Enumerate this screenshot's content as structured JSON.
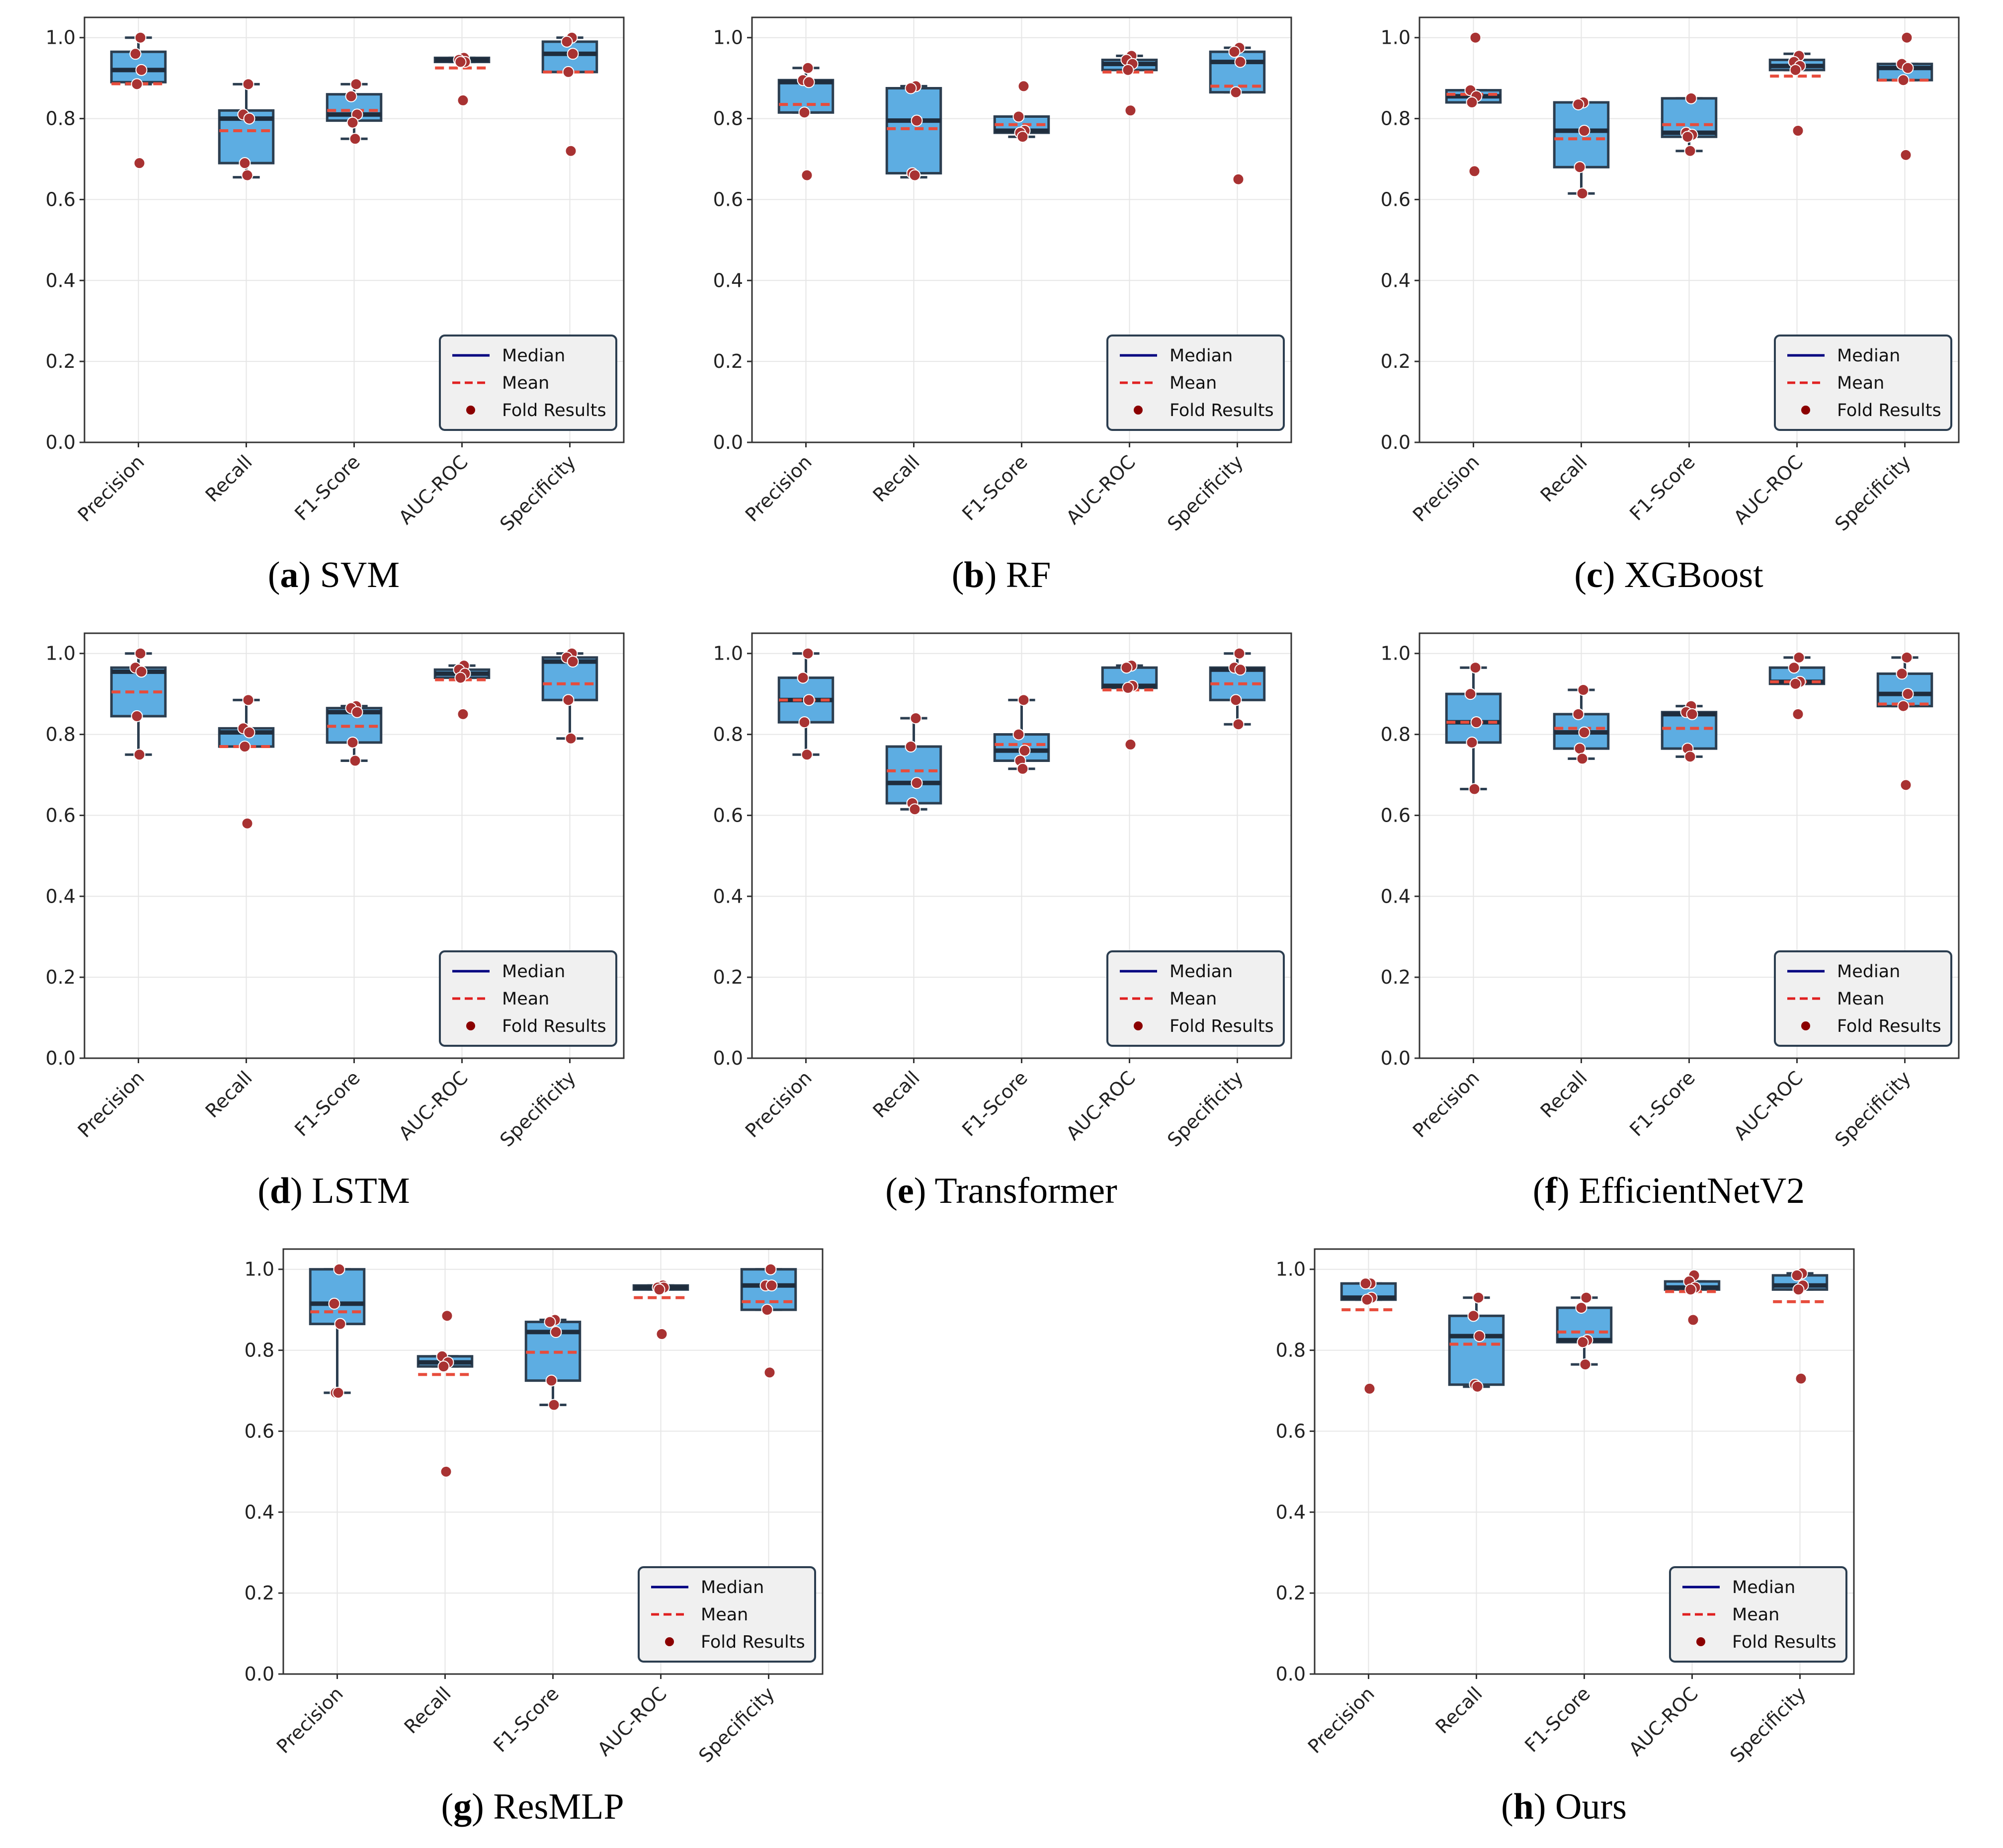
{
  "legend": {
    "median": "Median",
    "mean": "Mean",
    "fold": "Fold Results"
  },
  "colors": {
    "box_fill": "#5dade2",
    "box_edge": "#2c3e50",
    "median": "#1f2d3d",
    "mean": "#e74c3c",
    "points": "#a83232",
    "legend_median": "#000080",
    "legend_mean": "#e02020",
    "legend_points": "#8b0000"
  },
  "chart_data": [
    {
      "type": "box",
      "letter": "a",
      "model": "SVM",
      "categories": [
        "Precision",
        "Recall",
        "F1-Score",
        "AUC-ROC",
        "Specificity"
      ],
      "yticks": [
        "0.0",
        "0.2",
        "0.4",
        "0.6",
        "0.8",
        "1.0"
      ],
      "ylim": [
        0,
        1.05
      ],
      "series": [
        {
          "name": "Precision",
          "q1": 0.89,
          "median": 0.92,
          "q3": 0.965,
          "whisker_low": 0.885,
          "whisker_high": 1.0,
          "mean": 0.886,
          "folds": [
            1.0,
            0.96,
            0.92,
            0.885,
            0.69
          ]
        },
        {
          "name": "Recall",
          "q1": 0.69,
          "median": 0.8,
          "q3": 0.82,
          "whisker_low": 0.655,
          "whisker_high": 0.885,
          "mean": 0.77,
          "folds": [
            0.885,
            0.81,
            0.8,
            0.69,
            0.66
          ]
        },
        {
          "name": "F1-Score",
          "q1": 0.795,
          "median": 0.81,
          "q3": 0.86,
          "whisker_low": 0.75,
          "whisker_high": 0.885,
          "mean": 0.82,
          "folds": [
            0.885,
            0.855,
            0.81,
            0.79,
            0.75
          ]
        },
        {
          "name": "AUC-ROC",
          "q1": 0.94,
          "median": 0.945,
          "q3": 0.95,
          "whisker_low": 0.94,
          "whisker_high": 0.95,
          "mean": 0.925,
          "folds": [
            0.95,
            0.945,
            0.94,
            0.94,
            0.845
          ]
        },
        {
          "name": "Specificity",
          "q1": 0.915,
          "median": 0.96,
          "q3": 0.99,
          "whisker_low": 0.915,
          "whisker_high": 1.0,
          "mean": 0.915,
          "folds": [
            1.0,
            0.99,
            0.96,
            0.915,
            0.72
          ]
        }
      ]
    },
    {
      "type": "box",
      "letter": "b",
      "model": "RF",
      "categories": [
        "Precision",
        "Recall",
        "F1-Score",
        "AUC-ROC",
        "Specificity"
      ],
      "yticks": [
        "0.0",
        "0.2",
        "0.4",
        "0.6",
        "0.8",
        "1.0"
      ],
      "ylim": [
        0,
        1.05
      ],
      "series": [
        {
          "name": "Precision",
          "q1": 0.815,
          "median": 0.89,
          "q3": 0.895,
          "whisker_low": 0.815,
          "whisker_high": 0.925,
          "mean": 0.835,
          "folds": [
            0.925,
            0.895,
            0.89,
            0.815,
            0.66
          ]
        },
        {
          "name": "Recall",
          "q1": 0.665,
          "median": 0.795,
          "q3": 0.875,
          "whisker_low": 0.655,
          "whisker_high": 0.88,
          "mean": 0.775,
          "folds": [
            0.88,
            0.875,
            0.795,
            0.665,
            0.66
          ]
        },
        {
          "name": "F1-Score",
          "q1": 0.765,
          "median": 0.77,
          "q3": 0.805,
          "whisker_low": 0.755,
          "whisker_high": 0.805,
          "mean": 0.785,
          "folds": [
            0.88,
            0.805,
            0.77,
            0.765,
            0.755
          ]
        },
        {
          "name": "AUC-ROC",
          "q1": 0.92,
          "median": 0.935,
          "q3": 0.945,
          "whisker_low": 0.92,
          "whisker_high": 0.955,
          "mean": 0.915,
          "folds": [
            0.955,
            0.945,
            0.935,
            0.92,
            0.82
          ]
        },
        {
          "name": "Specificity",
          "q1": 0.865,
          "median": 0.94,
          "q3": 0.965,
          "whisker_low": 0.865,
          "whisker_high": 0.975,
          "mean": 0.88,
          "folds": [
            0.975,
            0.965,
            0.94,
            0.865,
            0.65
          ]
        }
      ]
    },
    {
      "type": "box",
      "letter": "c",
      "model": "XGBoost",
      "categories": [
        "Precision",
        "Recall",
        "F1-Score",
        "AUC-ROC",
        "Specificity"
      ],
      "yticks": [
        "0.0",
        "0.2",
        "0.4",
        "0.6",
        "0.8",
        "1.0"
      ],
      "ylim": [
        0,
        1.05
      ],
      "series": [
        {
          "name": "Precision",
          "q1": 0.84,
          "median": 0.855,
          "q3": 0.87,
          "whisker_low": 0.84,
          "whisker_high": 0.87,
          "mean": 0.86,
          "folds": [
            1.0,
            0.87,
            0.855,
            0.84,
            0.67
          ]
        },
        {
          "name": "Recall",
          "q1": 0.68,
          "median": 0.77,
          "q3": 0.84,
          "whisker_low": 0.615,
          "whisker_high": 0.84,
          "mean": 0.75,
          "folds": [
            0.84,
            0.835,
            0.77,
            0.68,
            0.615
          ]
        },
        {
          "name": "F1-Score",
          "q1": 0.755,
          "median": 0.765,
          "q3": 0.85,
          "whisker_low": 0.72,
          "whisker_high": 0.85,
          "mean": 0.785,
          "folds": [
            0.85,
            0.765,
            0.76,
            0.755,
            0.72
          ]
        },
        {
          "name": "AUC-ROC",
          "q1": 0.92,
          "median": 0.93,
          "q3": 0.945,
          "whisker_low": 0.92,
          "whisker_high": 0.96,
          "mean": 0.905,
          "folds": [
            0.955,
            0.94,
            0.93,
            0.92,
            0.77
          ]
        },
        {
          "name": "Specificity",
          "q1": 0.895,
          "median": 0.925,
          "q3": 0.935,
          "whisker_low": 0.895,
          "whisker_high": 0.935,
          "mean": 0.895,
          "folds": [
            1.0,
            0.935,
            0.925,
            0.895,
            0.71
          ]
        }
      ]
    },
    {
      "type": "box",
      "letter": "d",
      "model": "LSTM",
      "categories": [
        "Precision",
        "Recall",
        "F1-Score",
        "AUC-ROC",
        "Specificity"
      ],
      "yticks": [
        "0.0",
        "0.2",
        "0.4",
        "0.6",
        "0.8",
        "1.0"
      ],
      "ylim": [
        0,
        1.05
      ],
      "series": [
        {
          "name": "Precision",
          "q1": 0.845,
          "median": 0.955,
          "q3": 0.965,
          "whisker_low": 0.75,
          "whisker_high": 1.0,
          "mean": 0.905,
          "folds": [
            1.0,
            0.965,
            0.955,
            0.845,
            0.75
          ]
        },
        {
          "name": "Recall",
          "q1": 0.77,
          "median": 0.805,
          "q3": 0.815,
          "whisker_low": 0.77,
          "whisker_high": 0.885,
          "mean": 0.77,
          "folds": [
            0.885,
            0.815,
            0.805,
            0.77,
            0.58
          ]
        },
        {
          "name": "F1-Score",
          "q1": 0.78,
          "median": 0.855,
          "q3": 0.865,
          "whisker_low": 0.735,
          "whisker_high": 0.87,
          "mean": 0.82,
          "folds": [
            0.87,
            0.865,
            0.855,
            0.78,
            0.735
          ]
        },
        {
          "name": "AUC-ROC",
          "q1": 0.94,
          "median": 0.95,
          "q3": 0.96,
          "whisker_low": 0.94,
          "whisker_high": 0.97,
          "mean": 0.935,
          "folds": [
            0.97,
            0.96,
            0.95,
            0.94,
            0.85
          ]
        },
        {
          "name": "Specificity",
          "q1": 0.885,
          "median": 0.98,
          "q3": 0.99,
          "whisker_low": 0.79,
          "whisker_high": 1.0,
          "mean": 0.925,
          "folds": [
            1.0,
            0.99,
            0.98,
            0.885,
            0.79
          ]
        }
      ]
    },
    {
      "type": "box",
      "letter": "e",
      "model": "Transformer",
      "categories": [
        "Precision",
        "Recall",
        "F1-Score",
        "AUC-ROC",
        "Specificity"
      ],
      "yticks": [
        "0.0",
        "0.2",
        "0.4",
        "0.6",
        "0.8",
        "1.0"
      ],
      "ylim": [
        0,
        1.05
      ],
      "series": [
        {
          "name": "Precision",
          "q1": 0.83,
          "median": 0.885,
          "q3": 0.94,
          "whisker_low": 0.75,
          "whisker_high": 1.0,
          "mean": 0.885,
          "folds": [
            1.0,
            0.94,
            0.885,
            0.83,
            0.75
          ]
        },
        {
          "name": "Recall",
          "q1": 0.63,
          "median": 0.68,
          "q3": 0.77,
          "whisker_low": 0.615,
          "whisker_high": 0.84,
          "mean": 0.71,
          "folds": [
            0.84,
            0.77,
            0.68,
            0.63,
            0.615
          ]
        },
        {
          "name": "F1-Score",
          "q1": 0.735,
          "median": 0.76,
          "q3": 0.8,
          "whisker_low": 0.715,
          "whisker_high": 0.885,
          "mean": 0.775,
          "folds": [
            0.885,
            0.8,
            0.76,
            0.735,
            0.715
          ]
        },
        {
          "name": "AUC-ROC",
          "q1": 0.915,
          "median": 0.92,
          "q3": 0.965,
          "whisker_low": 0.915,
          "whisker_high": 0.97,
          "mean": 0.91,
          "folds": [
            0.97,
            0.965,
            0.92,
            0.915,
            0.775
          ]
        },
        {
          "name": "Specificity",
          "q1": 0.885,
          "median": 0.96,
          "q3": 0.965,
          "whisker_low": 0.825,
          "whisker_high": 1.0,
          "mean": 0.925,
          "folds": [
            1.0,
            0.965,
            0.96,
            0.885,
            0.825
          ]
        }
      ]
    },
    {
      "type": "box",
      "letter": "f",
      "model": "EfficientNetV2",
      "categories": [
        "Precision",
        "Recall",
        "F1-Score",
        "AUC-ROC",
        "Specificity"
      ],
      "yticks": [
        "0.0",
        "0.2",
        "0.4",
        "0.6",
        "0.8",
        "1.0"
      ],
      "ylim": [
        0,
        1.05
      ],
      "series": [
        {
          "name": "Precision",
          "q1": 0.78,
          "median": 0.83,
          "q3": 0.9,
          "whisker_low": 0.665,
          "whisker_high": 0.965,
          "mean": 0.83,
          "folds": [
            0.965,
            0.9,
            0.83,
            0.78,
            0.665
          ]
        },
        {
          "name": "Recall",
          "q1": 0.765,
          "median": 0.805,
          "q3": 0.85,
          "whisker_low": 0.74,
          "whisker_high": 0.91,
          "mean": 0.815,
          "folds": [
            0.91,
            0.85,
            0.805,
            0.765,
            0.74
          ]
        },
        {
          "name": "F1-Score",
          "q1": 0.765,
          "median": 0.85,
          "q3": 0.855,
          "whisker_low": 0.745,
          "whisker_high": 0.87,
          "mean": 0.815,
          "folds": [
            0.87,
            0.855,
            0.85,
            0.765,
            0.745
          ]
        },
        {
          "name": "AUC-ROC",
          "q1": 0.925,
          "median": 0.93,
          "q3": 0.965,
          "whisker_low": 0.925,
          "whisker_high": 0.99,
          "mean": 0.93,
          "folds": [
            0.99,
            0.965,
            0.93,
            0.925,
            0.85
          ]
        },
        {
          "name": "Specificity",
          "q1": 0.87,
          "median": 0.9,
          "q3": 0.95,
          "whisker_low": 0.87,
          "whisker_high": 0.99,
          "mean": 0.875,
          "folds": [
            0.99,
            0.95,
            0.9,
            0.87,
            0.675
          ]
        }
      ]
    },
    {
      "type": "box",
      "letter": "g",
      "model": "ResMLP",
      "categories": [
        "Precision",
        "Recall",
        "F1-Score",
        "AUC-ROC",
        "Specificity"
      ],
      "yticks": [
        "0.0",
        "0.2",
        "0.4",
        "0.6",
        "0.8",
        "1.0"
      ],
      "ylim": [
        0,
        1.05
      ],
      "series": [
        {
          "name": "Precision",
          "q1": 0.865,
          "median": 0.915,
          "q3": 1.0,
          "whisker_low": 0.695,
          "whisker_high": 1.0,
          "mean": 0.895,
          "folds": [
            1.0,
            0.915,
            0.865,
            0.695,
            0.695
          ]
        },
        {
          "name": "Recall",
          "q1": 0.76,
          "median": 0.77,
          "q3": 0.785,
          "whisker_low": 0.76,
          "whisker_high": 0.785,
          "mean": 0.74,
          "folds": [
            0.885,
            0.785,
            0.77,
            0.76,
            0.5
          ]
        },
        {
          "name": "F1-Score",
          "q1": 0.725,
          "median": 0.845,
          "q3": 0.87,
          "whisker_low": 0.665,
          "whisker_high": 0.875,
          "mean": 0.795,
          "folds": [
            0.875,
            0.87,
            0.845,
            0.725,
            0.665
          ]
        },
        {
          "name": "AUC-ROC",
          "q1": 0.95,
          "median": 0.955,
          "q3": 0.96,
          "whisker_low": 0.95,
          "whisker_high": 0.96,
          "mean": 0.93,
          "folds": [
            0.96,
            0.955,
            0.955,
            0.95,
            0.84
          ]
        },
        {
          "name": "Specificity",
          "q1": 0.9,
          "median": 0.96,
          "q3": 1.0,
          "whisker_low": 0.9,
          "whisker_high": 1.0,
          "mean": 0.92,
          "folds": [
            1.0,
            0.96,
            0.96,
            0.9,
            0.745
          ]
        }
      ]
    },
    {
      "type": "box",
      "letter": "h",
      "model": "Ours",
      "categories": [
        "Precision",
        "Recall",
        "F1-Score",
        "AUC-ROC",
        "Specificity"
      ],
      "yticks": [
        "0.0",
        "0.2",
        "0.4",
        "0.6",
        "0.8",
        "1.0"
      ],
      "ylim": [
        0,
        1.05
      ],
      "series": [
        {
          "name": "Precision",
          "q1": 0.925,
          "median": 0.93,
          "q3": 0.965,
          "whisker_low": 0.925,
          "whisker_high": 0.965,
          "mean": 0.9,
          "folds": [
            0.965,
            0.965,
            0.93,
            0.925,
            0.705
          ]
        },
        {
          "name": "Recall",
          "q1": 0.715,
          "median": 0.835,
          "q3": 0.885,
          "whisker_low": 0.71,
          "whisker_high": 0.93,
          "mean": 0.815,
          "folds": [
            0.93,
            0.885,
            0.835,
            0.715,
            0.71
          ]
        },
        {
          "name": "F1-Score",
          "q1": 0.82,
          "median": 0.825,
          "q3": 0.905,
          "whisker_low": 0.765,
          "whisker_high": 0.93,
          "mean": 0.845,
          "folds": [
            0.93,
            0.905,
            0.825,
            0.82,
            0.765
          ]
        },
        {
          "name": "AUC-ROC",
          "q1": 0.95,
          "median": 0.955,
          "q3": 0.97,
          "whisker_low": 0.95,
          "whisker_high": 0.97,
          "mean": 0.945,
          "folds": [
            0.985,
            0.97,
            0.955,
            0.95,
            0.875
          ]
        },
        {
          "name": "Specificity",
          "q1": 0.95,
          "median": 0.96,
          "q3": 0.985,
          "whisker_low": 0.95,
          "whisker_high": 0.99,
          "mean": 0.92,
          "folds": [
            0.99,
            0.985,
            0.96,
            0.95,
            0.73
          ]
        }
      ]
    }
  ]
}
